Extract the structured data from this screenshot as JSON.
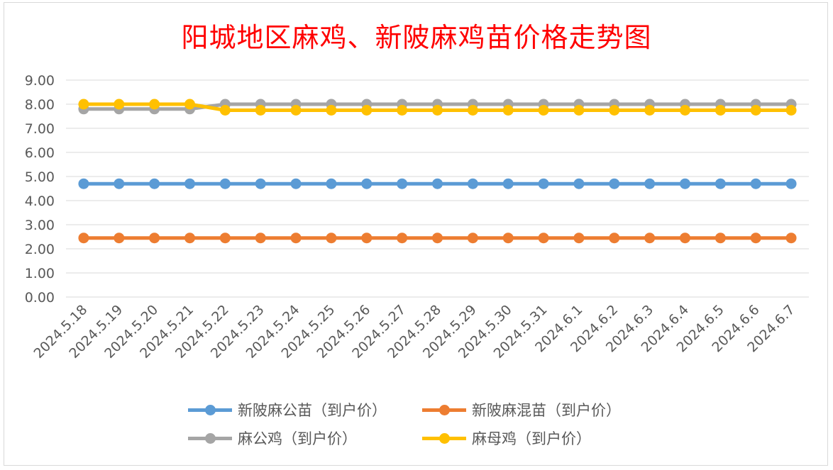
{
  "chart_data": {
    "type": "line",
    "title": "阳城地区麻鸡、新陂麻鸡苗价格走势图",
    "xlabel": "",
    "ylabel": "",
    "categories": [
      "2024.5.18",
      "2024.5.19",
      "2024.5.20",
      "2024.5.21",
      "2024.5.22",
      "2024.5.23",
      "2024.5.24",
      "2024.5.25",
      "2024.5.26",
      "2024.5.27",
      "2024.5.28",
      "2024.5.29",
      "2024.5.30",
      "2024.5.31",
      "2024.6.1",
      "2024.6.2",
      "2024.6.3",
      "2024.6.4",
      "2024.6.5",
      "2024.6.6",
      "2024.6.7"
    ],
    "ylim": [
      0,
      9
    ],
    "yticks": [
      "0.00",
      "1.00",
      "2.00",
      "3.00",
      "4.00",
      "5.00",
      "6.00",
      "7.00",
      "8.00",
      "9.00"
    ],
    "grid": true,
    "legend_position": "bottom",
    "series": [
      {
        "name": "新陂麻公苗（到户价）",
        "color": "#5b9bd5",
        "values": [
          4.7,
          4.7,
          4.7,
          4.7,
          4.7,
          4.7,
          4.7,
          4.7,
          4.7,
          4.7,
          4.7,
          4.7,
          4.7,
          4.7,
          4.7,
          4.7,
          4.7,
          4.7,
          4.7,
          4.7,
          4.7
        ]
      },
      {
        "name": "新陂麻混苗（到户价）",
        "color": "#ed7d31",
        "values": [
          2.45,
          2.45,
          2.45,
          2.45,
          2.45,
          2.45,
          2.45,
          2.45,
          2.45,
          2.45,
          2.45,
          2.45,
          2.45,
          2.45,
          2.45,
          2.45,
          2.45,
          2.45,
          2.45,
          2.45,
          2.45
        ]
      },
      {
        "name": "麻公鸡（到户价）",
        "color": "#a5a5a5",
        "values": [
          7.8,
          7.8,
          7.8,
          7.8,
          8.0,
          8.0,
          8.0,
          8.0,
          8.0,
          8.0,
          8.0,
          8.0,
          8.0,
          8.0,
          8.0,
          8.0,
          8.0,
          8.0,
          8.0,
          8.0,
          8.0
        ]
      },
      {
        "name": "麻母鸡（到户价）",
        "color": "#ffc000",
        "values": [
          8.0,
          8.0,
          8.0,
          8.0,
          7.75,
          7.75,
          7.75,
          7.75,
          7.75,
          7.75,
          7.75,
          7.75,
          7.75,
          7.75,
          7.75,
          7.75,
          7.75,
          7.75,
          7.75,
          7.75,
          7.75
        ]
      }
    ]
  }
}
